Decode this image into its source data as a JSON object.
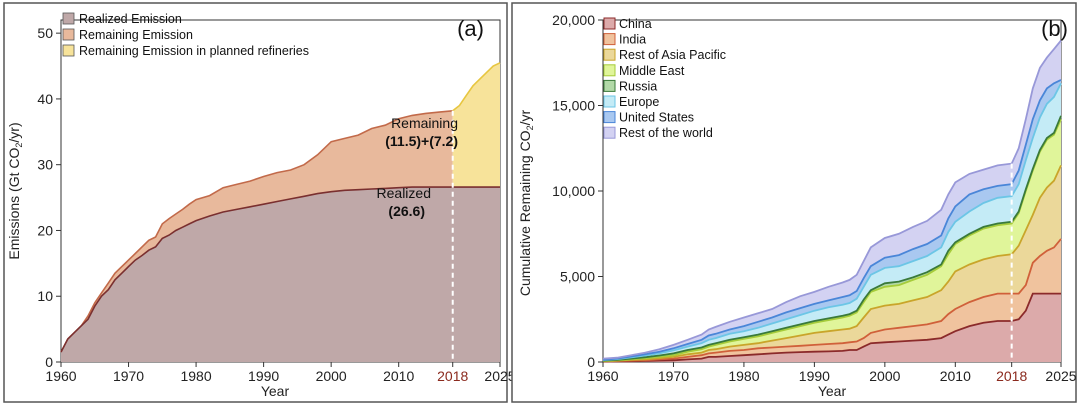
{
  "chart_data": [
    {
      "panel_label": "(a)",
      "type": "area",
      "xlabel": "Year",
      "ylabel_parts": [
        "Emissions (Gt CO",
        "2",
        "/yr)"
      ],
      "x_ticks": [
        1960,
        1970,
        1980,
        1990,
        2000,
        2010,
        2018,
        2025
      ],
      "highlight_tick": 2018,
      "y_ticks": [
        0,
        10,
        20,
        30,
        40,
        50
      ],
      "xlim": [
        1960,
        2025
      ],
      "ylim": [
        0,
        52
      ],
      "legend": [
        {
          "label": "Realized Emission",
          "color": "#bfa8a8"
        },
        {
          "label": "Remaining Emission",
          "color": "#e8b99c"
        },
        {
          "label": "Remaining Emission in planned refineries",
          "color": "#f7e39a"
        }
      ],
      "series": [
        {
          "name": "Realized Emission",
          "fill": "#bfa8a8",
          "line": "#7a2f2f",
          "x": [
            1960,
            1961,
            1962,
            1963,
            1964,
            1965,
            1966,
            1967,
            1968,
            1969,
            1970,
            1971,
            1972,
            1973,
            1974,
            1975,
            1976,
            1977,
            1978,
            1979,
            1980,
            1982,
            1984,
            1986,
            1988,
            1990,
            1992,
            1994,
            1996,
            1998,
            2000,
            2002,
            2004,
            2006,
            2008,
            2010,
            2012,
            2014,
            2016,
            2018,
            2019,
            2025
          ],
          "y": [
            1.5,
            3.5,
            4.5,
            5.5,
            6.5,
            8.5,
            10,
            11,
            12.5,
            13.5,
            14.5,
            15.5,
            16.2,
            17,
            17.5,
            18.8,
            19.3,
            20,
            20.5,
            21,
            21.5,
            22.2,
            22.8,
            23.2,
            23.6,
            24,
            24.4,
            24.8,
            25.2,
            25.6,
            25.9,
            26.1,
            26.2,
            26.3,
            26.4,
            26.5,
            26.6,
            26.6,
            26.6,
            26.6,
            26.6,
            26.6
          ]
        },
        {
          "name": "Remaining Emission",
          "fill": "#e8b99c",
          "line": "#c26a4a",
          "x": [
            1960,
            1961,
            1962,
            1963,
            1964,
            1965,
            1966,
            1967,
            1968,
            1969,
            1970,
            1971,
            1972,
            1973,
            1974,
            1975,
            1976,
            1977,
            1978,
            1979,
            1980,
            1982,
            1984,
            1986,
            1988,
            1990,
            1992,
            1994,
            1996,
            1998,
            2000,
            2002,
            2004,
            2006,
            2008,
            2010,
            2012,
            2014,
            2016,
            2018
          ],
          "y": [
            1.5,
            3.5,
            4.5,
            5.5,
            7,
            9,
            10.5,
            12,
            13.5,
            14.5,
            15.5,
            16.5,
            17.5,
            18.5,
            19,
            21,
            21.8,
            22.5,
            23.2,
            24,
            24.7,
            25.3,
            26.5,
            27,
            27.5,
            28.2,
            28.8,
            29.2,
            30,
            31.5,
            33.5,
            34,
            34.5,
            35.5,
            36,
            37,
            37.5,
            37.8,
            38,
            38.2
          ]
        },
        {
          "name": "Remaining Emission in planned refineries",
          "fill": "#f7e39a",
          "line": "#e7c640",
          "x": [
            2018,
            2019,
            2020,
            2021,
            2022,
            2023,
            2024,
            2025
          ],
          "y": [
            38.2,
            39,
            40.5,
            42,
            43,
            44,
            45,
            45.5
          ]
        }
      ],
      "annotations": [
        {
          "id": "remaining",
          "title": "Remaining",
          "value": "(11.5)+(7.2)"
        },
        {
          "id": "realized",
          "title": "Realized",
          "value": "(26.6)"
        }
      ]
    },
    {
      "panel_label": "(b)",
      "type": "area",
      "stacked": true,
      "xlabel": "Year",
      "ylabel_parts": [
        "Cumulative Remaining CO",
        "2",
        "/yr"
      ],
      "x_ticks": [
        1960,
        1970,
        1980,
        1990,
        2000,
        2010,
        2018,
        2025
      ],
      "highlight_tick": 2018,
      "y_ticks": [
        0,
        5000,
        10000,
        15000,
        20000
      ],
      "y_tick_labels": [
        "0",
        "5,000",
        "10,000",
        "15,000",
        "20,000"
      ],
      "xlim": [
        1960,
        2025
      ],
      "ylim": [
        0,
        20000
      ],
      "x": [
        1960,
        1962,
        1964,
        1966,
        1968,
        1970,
        1972,
        1974,
        1975,
        1976,
        1978,
        1980,
        1982,
        1984,
        1986,
        1988,
        1990,
        1992,
        1994,
        1995,
        1996,
        1997,
        1998,
        2000,
        2002,
        2004,
        2006,
        2008,
        2009,
        2010,
        2012,
        2014,
        2016,
        2018,
        2019,
        2020,
        2021,
        2022,
        2023,
        2024,
        2025
      ],
      "series": [
        {
          "name": "China",
          "color": "#dcaaaa",
          "line": "#8b2a2a",
          "cumulative": [
            20,
            30,
            40,
            60,
            80,
            100,
            150,
            200,
            300,
            300,
            350,
            400,
            450,
            500,
            550,
            580,
            600,
            620,
            650,
            700,
            700,
            900,
            1100,
            1150,
            1200,
            1250,
            1300,
            1400,
            1600,
            1800,
            2100,
            2300,
            2400,
            2400,
            2500,
            3000,
            4000,
            4000,
            4000,
            4000,
            4000
          ]
        },
        {
          "name": "India",
          "color": "#f0c39e",
          "line": "#d0603a",
          "cumulative": [
            30,
            60,
            80,
            100,
            150,
            200,
            300,
            400,
            500,
            550,
            650,
            700,
            800,
            850,
            900,
            950,
            1000,
            1050,
            1100,
            1150,
            1200,
            1400,
            1700,
            1900,
            2000,
            2100,
            2200,
            2400,
            2800,
            3100,
            3500,
            3800,
            4000,
            4000,
            4000,
            4500,
            5800,
            6200,
            6500,
            6700,
            7200
          ]
        },
        {
          "name": "Rest of Asia Pacific",
          "color": "#ebd89a",
          "line": "#c9a52a",
          "cumulative": [
            40,
            80,
            120,
            160,
            220,
            300,
            450,
            550,
            700,
            750,
            900,
            1000,
            1100,
            1250,
            1400,
            1550,
            1700,
            1800,
            1900,
            1950,
            2100,
            2600,
            3100,
            3300,
            3400,
            3600,
            3800,
            4200,
            4700,
            5300,
            5700,
            6000,
            6200,
            6300,
            6800,
            7700,
            8600,
            9600,
            10200,
            10600,
            11500
          ]
        },
        {
          "name": "Middle East",
          "color": "#e0f59a",
          "line": "#a6cc3a",
          "cumulative": [
            60,
            100,
            160,
            220,
            300,
            400,
            600,
            750,
            900,
            1000,
            1200,
            1350,
            1500,
            1700,
            1900,
            2100,
            2300,
            2450,
            2600,
            2700,
            2900,
            3500,
            4100,
            4400,
            4500,
            4800,
            5100,
            5600,
            6300,
            6900,
            7400,
            7800,
            8000,
            8100,
            8700,
            10000,
            11200,
            12300,
            13000,
            13300,
            14200
          ]
        },
        {
          "name": "Russia",
          "color": "#b2d9a8",
          "line": "#3a7a3a",
          "cumulative": [
            80,
            120,
            200,
            280,
            380,
            500,
            700,
            850,
            1000,
            1100,
            1300,
            1450,
            1600,
            1800,
            2000,
            2200,
            2400,
            2550,
            2700,
            2800,
            3000,
            3650,
            4200,
            4600,
            4700,
            4950,
            5250,
            5700,
            6500,
            7000,
            7500,
            7900,
            8100,
            8200,
            8800,
            10100,
            11300,
            12400,
            13100,
            13400,
            14400
          ]
        },
        {
          "name": "Europe",
          "color": "#c4ebf6",
          "line": "#6cc6e6",
          "cumulative": [
            110,
            170,
            270,
            380,
            500,
            680,
            900,
            1100,
            1300,
            1400,
            1650,
            1800,
            2000,
            2250,
            2500,
            2750,
            3000,
            3200,
            3350,
            3450,
            3700,
            4400,
            5100,
            5500,
            5600,
            5900,
            6200,
            6700,
            7600,
            8200,
            8800,
            9300,
            9600,
            9700,
            10400,
            11800,
            13100,
            14300,
            15100,
            15500,
            16300
          ]
        },
        {
          "name": "United States",
          "color": "#a9c8f0",
          "line": "#4a86d8",
          "cumulative": [
            130,
            200,
            320,
            450,
            600,
            800,
            1050,
            1300,
            1550,
            1650,
            1900,
            2100,
            2350,
            2600,
            2900,
            3150,
            3400,
            3600,
            3800,
            3900,
            4150,
            4900,
            5600,
            6100,
            6250,
            6600,
            6900,
            7400,
            8400,
            9100,
            9800,
            10100,
            10300,
            10400,
            11200,
            12700,
            14200,
            15300,
            16000,
            16300,
            16500
          ]
        },
        {
          "name": "Rest of the world",
          "color": "#d3d2f2",
          "line": "#9898d8",
          "cumulative": [
            200,
            250,
            400,
            550,
            750,
            1000,
            1300,
            1600,
            1900,
            2050,
            2350,
            2600,
            2850,
            3100,
            3500,
            3850,
            4100,
            4400,
            4650,
            4800,
            5100,
            5900,
            6700,
            7250,
            7500,
            7900,
            8250,
            8900,
            9800,
            10500,
            11000,
            11250,
            11500,
            11600,
            12500,
            14200,
            16000,
            17200,
            17800,
            18300,
            18800
          ]
        }
      ]
    }
  ]
}
